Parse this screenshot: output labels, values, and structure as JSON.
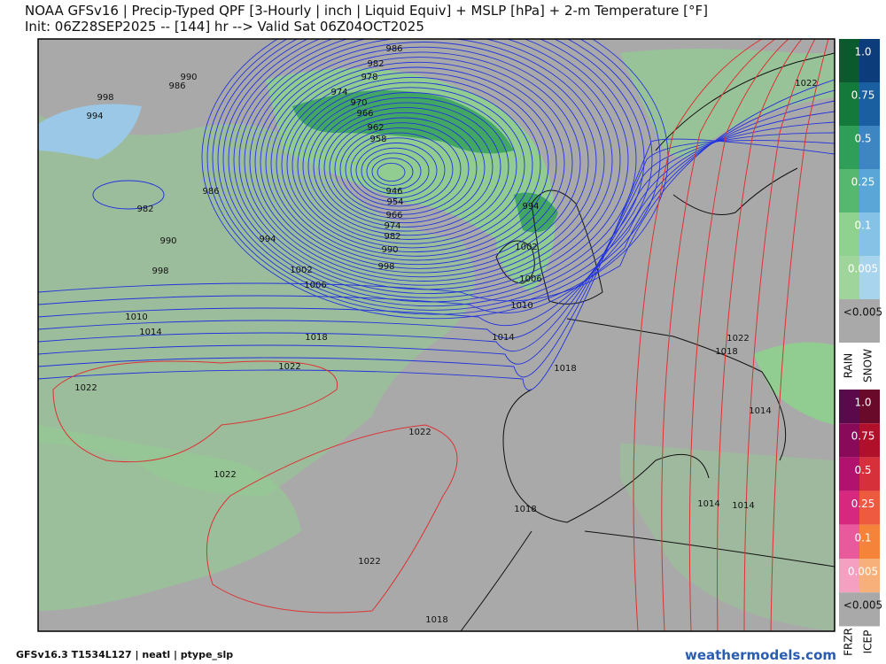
{
  "header": {
    "line1": "NOAA GFSv16 | Precip-Typed QPF [3-Hourly | inch | Liquid Equiv] + MSLP [hPa] + 2-m Temperature [°F]",
    "line2": "Init: 06Z28SEP2025 -- [144] hr --> Valid Sat 06Z04OCT2025"
  },
  "isobar_labels": [
    "986",
    "982",
    "978",
    "974",
    "970",
    "966",
    "962",
    "958",
    "946",
    "954",
    "966",
    "974",
    "982",
    "990",
    "998",
    "1002",
    "1006",
    "994",
    "986",
    "982",
    "990",
    "998",
    "990",
    "986",
    "998",
    "994",
    "1010",
    "1014",
    "1018",
    "1022",
    "1022",
    "1022",
    "1022",
    "1022",
    "1018",
    "1018",
    "1018",
    "1014",
    "1010",
    "1006",
    "1002",
    "994",
    "1022",
    "1018",
    "1014",
    "1014",
    "1014",
    "1022"
  ],
  "colorbar": {
    "rain_snow_labels": [
      "1.0",
      "0.75",
      "0.5",
      "0.25",
      "0.1",
      "0.005",
      "<0.005"
    ],
    "rain": "RAIN",
    "snow": "SNOW",
    "frzr_icep_labels": [
      "1.0",
      "0.75",
      "0.5",
      "0.25",
      "0.1",
      "0.005",
      "<0.005"
    ],
    "frzr": "FRZR",
    "icep": "ICEP"
  },
  "footer": {
    "model": "GFSv16.3 T1534L127 | neatl | ptype_slp",
    "site": "weathermodels.com"
  }
}
